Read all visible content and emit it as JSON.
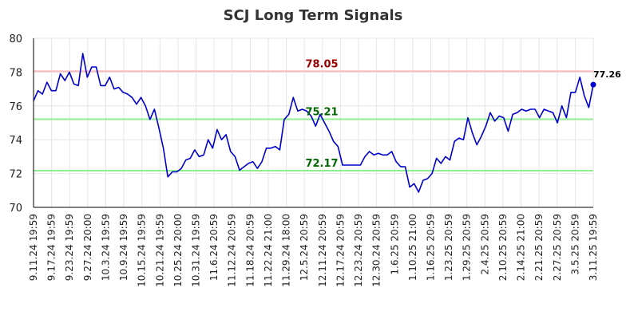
{
  "chart_data": {
    "type": "line",
    "title": "SCJ Long Term Signals",
    "xlabel": "",
    "ylabel": "",
    "ylim": [
      70,
      80
    ],
    "yticks": [
      "70",
      "72",
      "74",
      "76",
      "78",
      "80"
    ],
    "grid": true,
    "x_tick_labels": [
      "9.11.24 19:59",
      "9.17.24 19:59",
      "9.23.24 19:59",
      "9.27.24 20:00",
      "10.3.24 19:59",
      "10.9.24 19:59",
      "10.15.24 19:59",
      "10.21.24 19:59",
      "10.25.24 20:00",
      "10.31.24 19:59",
      "11.6.24 20:59",
      "11.12.24 20:59",
      "11.18.24 20:59",
      "11.22.24 21:00",
      "11.29.24 18:00",
      "12.5.24 20:59",
      "12.11.24 20:59",
      "12.17.24 20:59",
      "12.23.24 20:59",
      "12.30.24 20:59",
      "1.6.25 20:59",
      "1.10.25 21:00",
      "1.16.25 20:59",
      "1.23.25 20:59",
      "1.29.25 20:59",
      "2.4.25 20:59",
      "2.10.25 20:59",
      "2.14.25 21:00",
      "2.21.25 20:59",
      "2.27.25 20:59",
      "3.5.25 20:59",
      "3.11.25 19:59"
    ],
    "values": [
      76.3,
      76.9,
      76.7,
      77.4,
      76.9,
      76.9,
      77.9,
      77.5,
      78.0,
      77.3,
      77.2,
      79.1,
      77.7,
      78.3,
      78.3,
      77.2,
      77.2,
      77.7,
      77.0,
      77.1,
      76.8,
      76.7,
      76.5,
      76.1,
      76.5,
      76.0,
      75.2,
      75.8,
      74.7,
      73.5,
      71.8,
      72.1,
      72.1,
      72.3,
      72.8,
      72.9,
      73.4,
      73.0,
      73.1,
      74.0,
      73.5,
      74.6,
      74.0,
      74.3,
      73.3,
      73.0,
      72.2,
      72.4,
      72.6,
      72.7,
      72.3,
      72.7,
      73.5,
      73.5,
      73.6,
      73.4,
      75.2,
      75.5,
      76.5,
      75.7,
      75.8,
      75.7,
      75.4,
      74.8,
      75.5,
      75.0,
      74.5,
      73.9,
      73.6,
      72.5,
      72.5,
      72.5,
      72.5,
      72.5,
      73.0,
      73.3,
      73.1,
      73.2,
      73.1,
      73.1,
      73.3,
      72.7,
      72.4,
      72.4,
      71.2,
      71.4,
      70.9,
      71.6,
      71.7,
      72.0,
      72.9,
      72.6,
      73.0,
      72.8,
      73.9,
      74.1,
      74.0,
      75.3,
      74.4,
      73.7,
      74.2,
      74.8,
      75.6,
      75.1,
      75.4,
      75.3,
      74.5,
      75.5,
      75.6,
      75.8,
      75.7,
      75.8,
      75.8,
      75.3,
      75.8,
      75.7,
      75.6,
      75.0,
      76.0,
      75.3,
      76.8,
      76.8,
      77.7,
      76.6,
      75.9,
      77.26
    ],
    "last_value_label": "77.26",
    "levels": [
      {
        "value": 78.05,
        "label": "78.05",
        "color": "#ffbbbb",
        "text_color": "#990000"
      },
      {
        "value": 75.21,
        "label": "75.21",
        "color": "#90ee90",
        "text_color": "#006600"
      },
      {
        "value": 72.17,
        "label": "72.17",
        "color": "#90ee90",
        "text_color": "#006600"
      }
    ],
    "line_color": "#0000cc"
  }
}
